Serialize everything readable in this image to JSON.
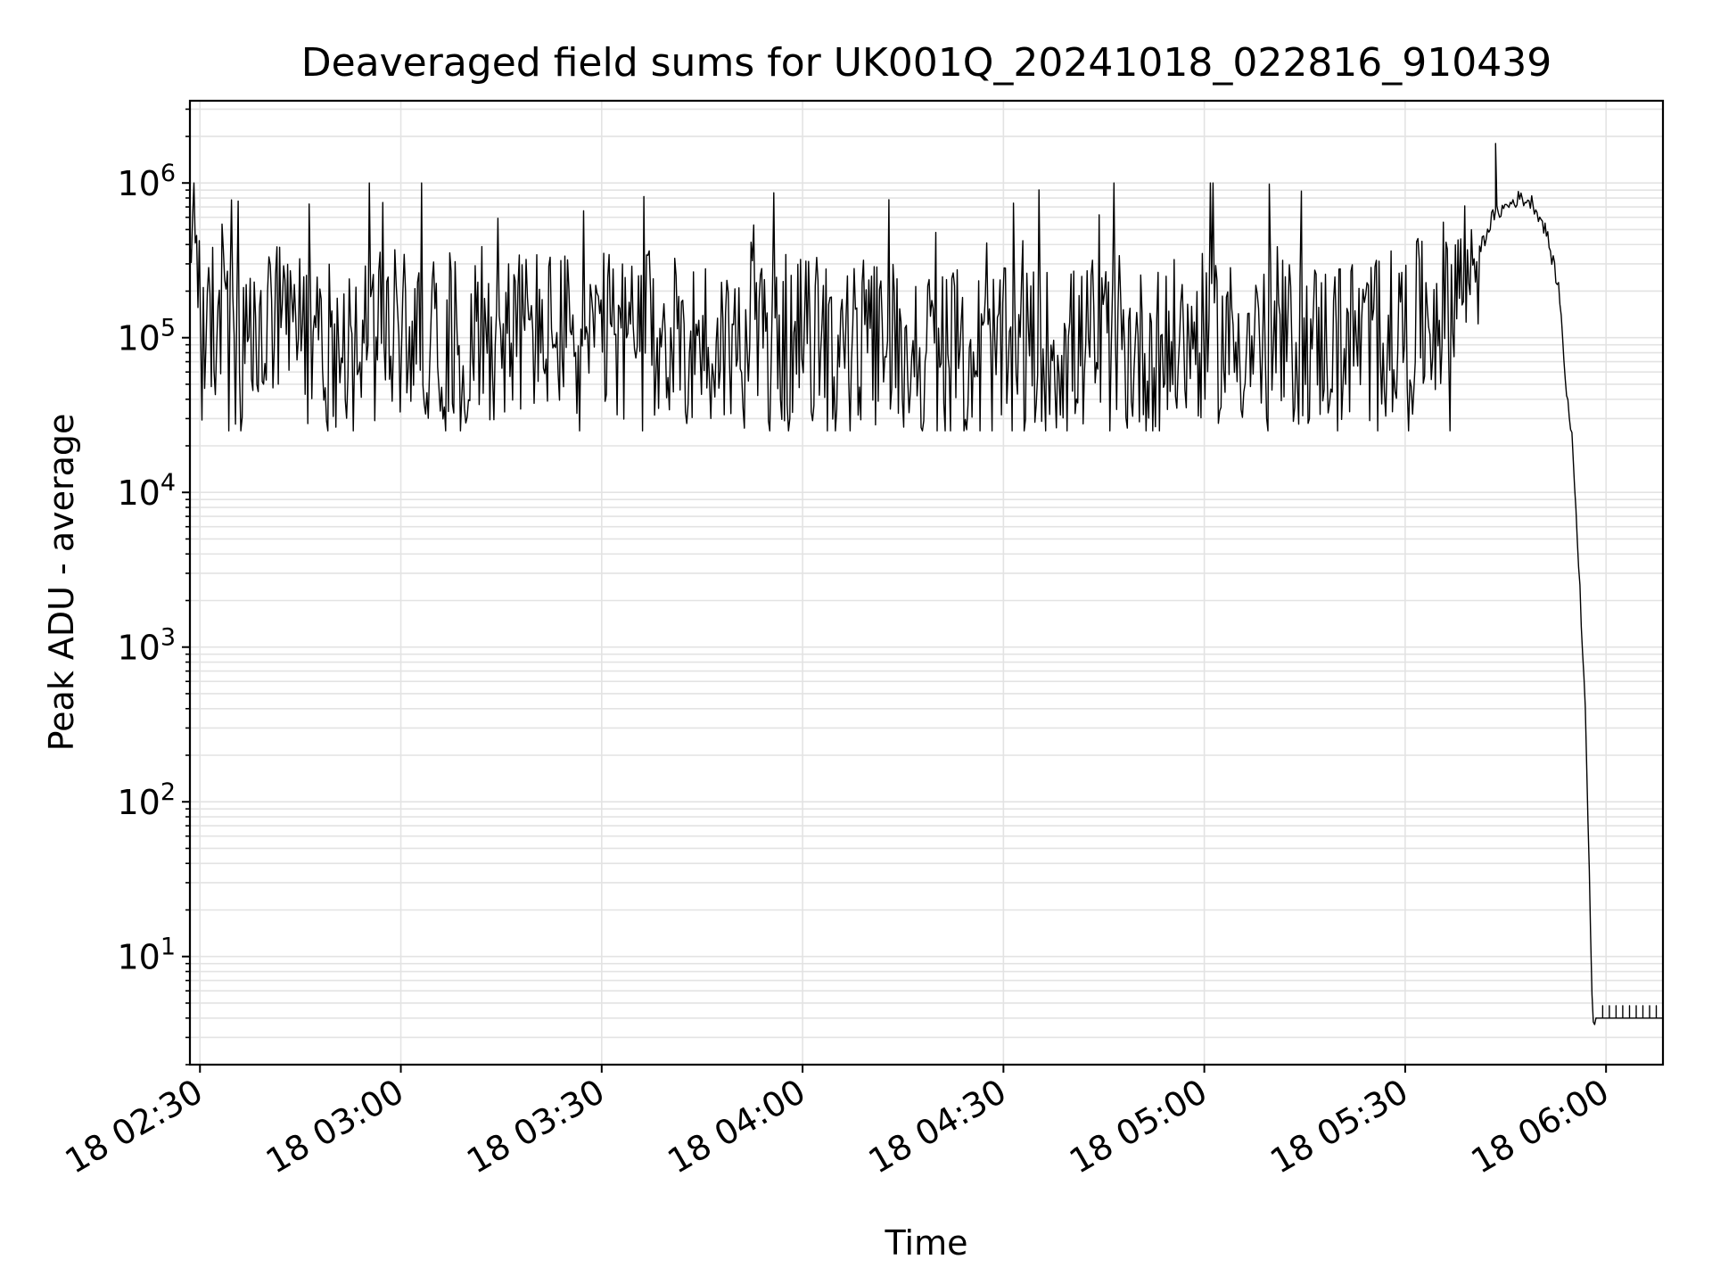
{
  "chart_data": {
    "type": "line",
    "title": "Deaveraged field sums for UK001Q_20241018_022816_910439",
    "xlabel": "Time",
    "ylabel": "Peak ADU - average",
    "yscale": "log",
    "ylim": [
      2,
      3400000
    ],
    "xlim": [
      "18 02:28:30",
      "18 06:08:30"
    ],
    "grid": true,
    "line_color": "#000000",
    "grid_color": "#e3e3e3",
    "x_ticks": [
      {
        "t": "18 02:30",
        "label": "18 02:30"
      },
      {
        "t": "18 03:00",
        "label": "18 03:00"
      },
      {
        "t": "18 03:30",
        "label": "18 03:30"
      },
      {
        "t": "18 04:00",
        "label": "18 04:00"
      },
      {
        "t": "18 04:30",
        "label": "18 04:30"
      },
      {
        "t": "18 05:00",
        "label": "18 05:00"
      },
      {
        "t": "18 05:30",
        "label": "18 05:30"
      },
      {
        "t": "18 06:00",
        "label": "18 06:00"
      }
    ],
    "y_ticks": [
      {
        "value": 10,
        "base": "10",
        "exp": "1"
      },
      {
        "value": 100,
        "base": "10",
        "exp": "2"
      },
      {
        "value": 1000,
        "base": "10",
        "exp": "3"
      },
      {
        "value": 10000,
        "base": "10",
        "exp": "4"
      },
      {
        "value": 100000,
        "base": "10",
        "exp": "5"
      },
      {
        "value": 1000000,
        "base": "10",
        "exp": "6"
      }
    ],
    "series": [
      {
        "x": [
          "18 02:28:30",
          "18 02:29:30",
          "18 02:31:00",
          "18 02:33:00",
          "18 02:36:00",
          "18 02:40:00",
          "18 02:45:00",
          "18 02:50:00",
          "18 02:55:00",
          "18 03:00:00",
          "18 03:10:00",
          "18 03:20:00",
          "18 03:30:00",
          "18 03:40:00",
          "18 03:50:00",
          "18 04:00:00",
          "18 04:10:00",
          "18 04:20:00",
          "18 04:30:00",
          "18 04:40:00",
          "18 04:50:00",
          "18 05:00:00",
          "18 05:10:00",
          "18 05:20:00",
          "18 05:25:00",
          "18 05:30:00",
          "18 05:35:00",
          "18 05:40:00",
          "18 05:42:00",
          "18 05:43:00",
          "18 05:44:00",
          "18 05:45:00",
          "18 05:47:00",
          "18 05:49:00",
          "18 05:51:00",
          "18 05:53:00",
          "18 05:54:00",
          "18 05:55:00",
          "18 05:56:00",
          "18 05:57:00",
          "18 05:58:00",
          "18 05:58:30",
          "18 05:58:45",
          "18 05:59:15",
          "18 06:00:00",
          "18 06:05:00",
          "18 06:08:30"
        ],
        "y": [
          400000,
          500000,
          80000,
          150000,
          60000,
          120000,
          100000,
          90000,
          100000,
          110000,
          100000,
          110000,
          100000,
          100000,
          90000,
          100000,
          90000,
          80000,
          80000,
          85000,
          80000,
          100000,
          90000,
          95000,
          100000,
          110000,
          150000,
          300000,
          450000,
          600000,
          650000,
          700000,
          800000,
          750000,
          500000,
          200000,
          50000,
          20000,
          3000,
          300,
          4,
          4,
          4,
          4,
          4,
          4,
          4
        ]
      }
    ]
  }
}
